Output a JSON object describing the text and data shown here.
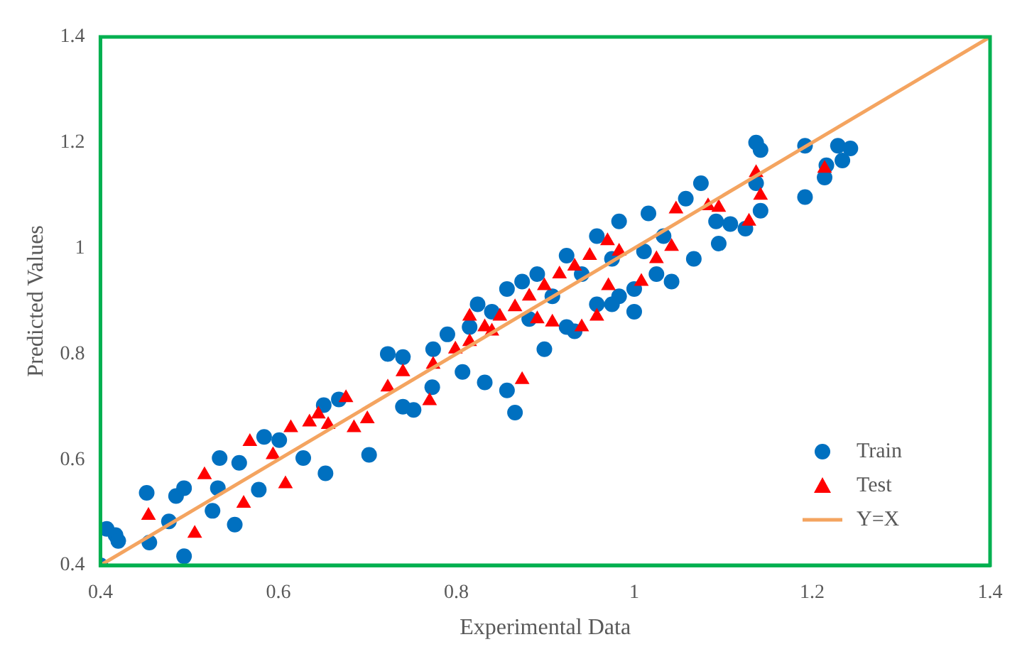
{
  "chart_data": {
    "type": "scatter",
    "xlabel": "Experimental Data",
    "ylabel": "Predicted Values",
    "xlim": [
      0.4,
      1.4
    ],
    "ylim": [
      0.4,
      1.4
    ],
    "xticks": [
      0.4,
      0.6,
      0.8,
      1,
      1.2,
      1.4
    ],
    "yticks": [
      0.4,
      0.6,
      0.8,
      1,
      1.2,
      1.4
    ],
    "grid": false,
    "legend": "bottom right",
    "series": [
      {
        "name": "Train",
        "marker": "circle",
        "color": "#0070c0",
        "x": [
          0.4,
          0.407,
          0.417,
          0.42,
          0.455,
          0.452,
          0.477,
          0.494,
          0.485,
          0.494,
          0.526,
          0.532,
          0.551,
          0.534,
          0.556,
          0.578,
          0.584,
          0.601,
          0.628,
          0.653,
          0.651,
          0.668,
          0.702,
          0.723,
          0.752,
          0.74,
          0.773,
          0.807,
          0.832,
          0.857,
          0.866,
          0.815,
          0.84,
          0.874,
          0.882,
          0.908,
          0.924,
          0.941,
          0.958,
          0.975,
          0.983,
          1.0,
          1.011,
          1.025,
          1.033,
          1.042,
          1.058,
          1.067,
          1.075,
          1.092,
          1.095,
          1.108,
          1.125,
          1.137,
          1.142,
          1.137,
          1.142,
          1.192,
          1.192,
          1.229,
          1.243,
          1.234,
          1.216,
          1.214,
          0.899,
          0.933,
          0.975,
          1.0,
          0.983,
          1.016,
          0.74,
          0.774,
          0.79,
          0.824,
          0.857,
          0.891,
          0.924,
          0.958
        ],
        "values": [
          0.4,
          0.469,
          0.457,
          0.446,
          0.443,
          0.537,
          0.483,
          0.417,
          0.531,
          0.546,
          0.503,
          0.546,
          0.477,
          0.603,
          0.594,
          0.543,
          0.643,
          0.637,
          0.603,
          0.574,
          0.703,
          0.714,
          0.609,
          0.8,
          0.694,
          0.7,
          0.737,
          0.766,
          0.746,
          0.731,
          0.689,
          0.851,
          0.88,
          0.937,
          0.866,
          0.909,
          0.851,
          0.951,
          0.894,
          0.98,
          0.909,
          0.923,
          0.994,
          0.951,
          1.023,
          0.937,
          1.094,
          0.98,
          1.123,
          1.051,
          1.009,
          1.046,
          1.037,
          1.2,
          1.186,
          1.123,
          1.071,
          1.194,
          1.097,
          1.194,
          1.189,
          1.166,
          1.157,
          1.134,
          0.809,
          0.843,
          0.894,
          0.88,
          1.051,
          1.066,
          0.794,
          0.809,
          0.837,
          0.894,
          0.923,
          0.951,
          0.986,
          1.023
        ]
      },
      {
        "name": "Test",
        "marker": "triangle",
        "color": "#ff0000",
        "x": [
          0.454,
          0.506,
          0.517,
          0.561,
          0.568,
          0.608,
          0.614,
          0.594,
          0.635,
          0.645,
          0.676,
          0.685,
          0.7,
          0.723,
          0.74,
          0.77,
          0.774,
          0.799,
          0.815,
          0.832,
          0.849,
          0.866,
          0.874,
          0.882,
          0.899,
          0.908,
          0.916,
          0.933,
          0.95,
          0.941,
          0.958,
          0.97,
          0.983,
          1.008,
          1.025,
          1.042,
          1.047,
          1.083,
          1.095,
          1.137,
          1.142,
          1.129,
          1.214,
          0.656,
          0.815,
          0.84,
          0.971,
          0.891
        ],
        "values": [
          0.494,
          0.46,
          0.571,
          0.517,
          0.634,
          0.554,
          0.66,
          0.609,
          0.671,
          0.686,
          0.717,
          0.66,
          0.677,
          0.737,
          0.766,
          0.711,
          0.78,
          0.809,
          0.823,
          0.851,
          0.871,
          0.889,
          0.751,
          0.909,
          0.929,
          0.86,
          0.951,
          0.966,
          0.986,
          0.851,
          0.871,
          1.014,
          0.994,
          0.937,
          0.98,
          1.003,
          1.074,
          1.08,
          1.077,
          1.143,
          1.1,
          1.051,
          1.151,
          0.666,
          0.871,
          0.843,
          0.929,
          0.866
        ]
      },
      {
        "name": "Y=X",
        "type": "line",
        "marker": "none",
        "line_style": "solid",
        "color": "#f4a460",
        "x": [
          0.4,
          1.4
        ],
        "values": [
          0.4,
          1.4
        ]
      }
    ]
  }
}
